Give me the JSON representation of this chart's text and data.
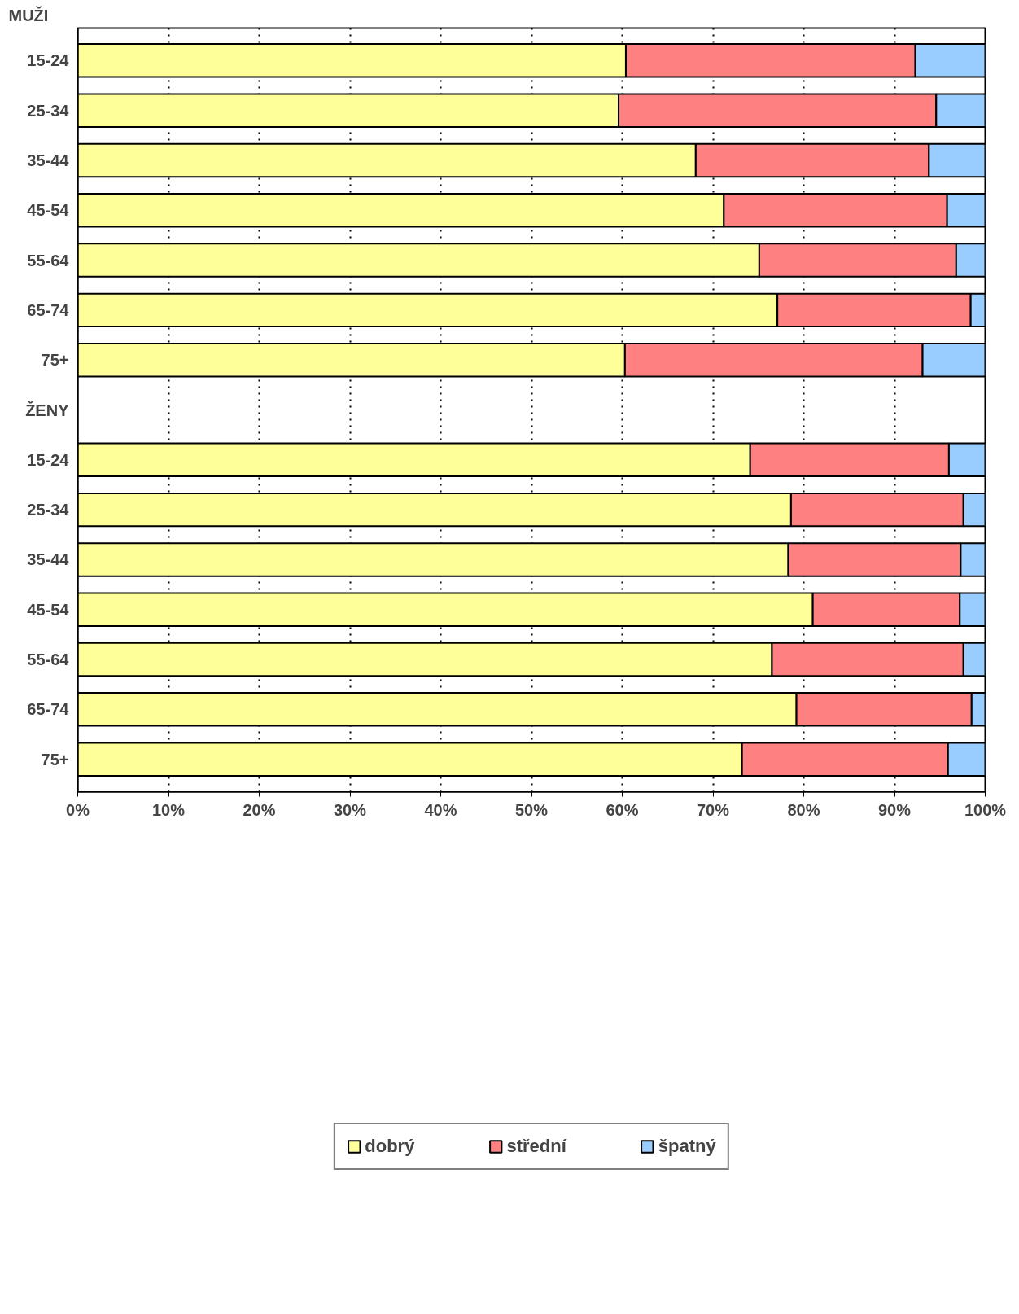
{
  "chart_data": {
    "type": "bar",
    "orientation": "horizontal",
    "stacked": true,
    "categories": [
      "15-24",
      "25-34",
      "35-44",
      "45-54",
      "55-64",
      "65-74",
      "75+",
      "ŽENY",
      "15-24",
      "25-34",
      "35-44",
      "45-54",
      "55-64",
      "65-74",
      "75+"
    ],
    "series": [
      {
        "name": "dobrý",
        "color": "#ffff99",
        "values": [
          60.4,
          59.6,
          68.1,
          71.2,
          75.1,
          77.1,
          60.3,
          null,
          74.1,
          78.6,
          78.3,
          81.0,
          76.5,
          79.2,
          73.2
        ]
      },
      {
        "name": "střední",
        "color": "#ff8080",
        "values": [
          31.9,
          35.0,
          25.7,
          24.6,
          21.7,
          21.3,
          32.8,
          null,
          21.9,
          19.0,
          19.0,
          16.2,
          21.1,
          19.3,
          22.7
        ]
      },
      {
        "name": "špatný",
        "color": "#99ccff",
        "values": [
          7.7,
          5.4,
          6.2,
          4.2,
          3.2,
          1.6,
          6.9,
          null,
          4.0,
          2.4,
          2.7,
          2.8,
          2.4,
          1.5,
          4.1
        ]
      }
    ],
    "xlim": [
      0,
      100
    ],
    "xticks": [
      {
        "value": 0,
        "label": "0%"
      },
      {
        "value": 10,
        "label": "10%"
      },
      {
        "value": 20,
        "label": "20%"
      },
      {
        "value": 30,
        "label": "30%"
      },
      {
        "value": 40,
        "label": "40%"
      },
      {
        "value": 50,
        "label": "50%"
      },
      {
        "value": 60,
        "label": "60%"
      },
      {
        "value": 70,
        "label": "70%"
      },
      {
        "value": 80,
        "label": "80%"
      },
      {
        "value": 90,
        "label": "90%"
      },
      {
        "value": 100,
        "label": "100%"
      }
    ],
    "grid": "x",
    "legend": "bottom",
    "annotations": [
      "MUŽI"
    ]
  }
}
